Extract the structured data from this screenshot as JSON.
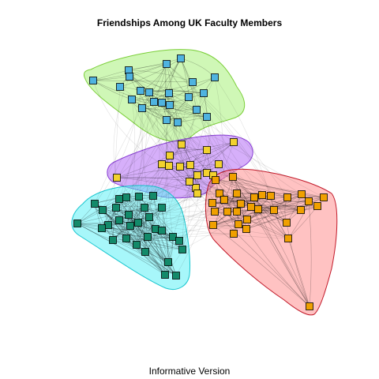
{
  "title": "Friendships Among UK Faculty Members",
  "caption": "Informative Version",
  "groups": [
    {
      "id": "g1",
      "fill": "#a8f07a",
      "stroke": "#7ccf3a",
      "node_color": "#4fb3e0"
    },
    {
      "id": "g2",
      "fill": "#b46ef5",
      "stroke": "#8a3fd6",
      "node_color": "#f2d22e"
    },
    {
      "id": "g3",
      "fill": "#ff8f8f",
      "stroke": "#c21a2a",
      "node_color": "#f0a000"
    },
    {
      "id": "g4",
      "fill": "#5ff1f5",
      "stroke": "#18c6cf",
      "node_color": "#138a6a"
    }
  ],
  "edge_color": "#00000033"
}
